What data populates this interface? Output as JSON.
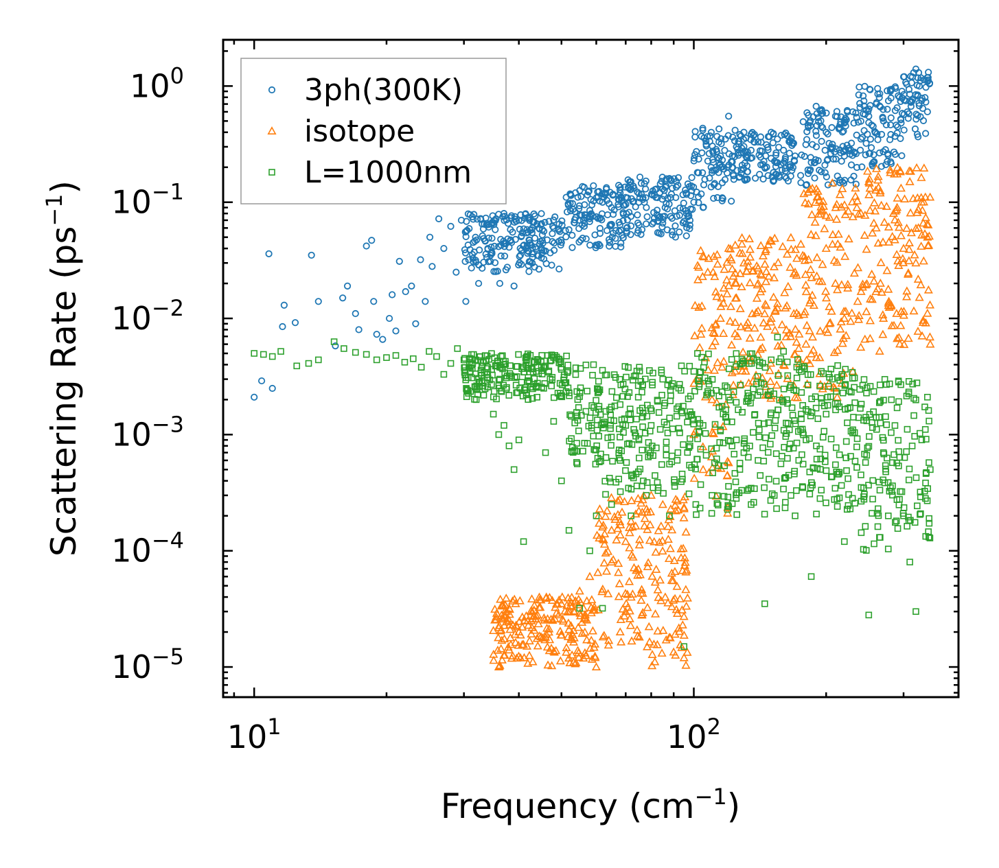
{
  "chart_data": {
    "type": "scatter",
    "title": "",
    "xlabel": "Frequency (cm",
    "xlabel_sup": "−1",
    "xlabel_end": ")",
    "ylabel": "Scattering Rate (ps",
    "ylabel_sup": "−1",
    "ylabel_end": ")",
    "xscale": "log",
    "yscale": "log",
    "xlim": [
      8.5,
      400
    ],
    "ylim": [
      5.5e-06,
      2.5
    ],
    "x_ticks": [
      {
        "base": "10",
        "exp": "1",
        "value": 10
      },
      {
        "base": "10",
        "exp": "2",
        "value": 100
      }
    ],
    "y_ticks": [
      {
        "base": "10",
        "exp": "0",
        "value": 1
      },
      {
        "base": "10",
        "exp": "−1",
        "value": 0.1
      },
      {
        "base": "10",
        "exp": "−2",
        "value": 0.01
      },
      {
        "base": "10",
        "exp": "−3",
        "value": 0.001
      },
      {
        "base": "10",
        "exp": "−4",
        "value": 0.0001
      },
      {
        "base": "10",
        "exp": "−5",
        "value": 1e-05
      }
    ],
    "legend_position": "top-left",
    "series": [
      {
        "name": "3ph(300K)",
        "marker": "circle",
        "color": "#1f77b4",
        "points": [
          [
            10,
            0.0021
          ],
          [
            10.4,
            0.0029
          ],
          [
            10.8,
            0.036
          ],
          [
            11,
            0.0025
          ],
          [
            11.6,
            0.0085
          ],
          [
            11.7,
            0.013
          ],
          [
            12.4,
            0.0092
          ],
          [
            13.5,
            0.035
          ],
          [
            14,
            0.014
          ],
          [
            15.3,
            0.0058
          ],
          [
            15.9,
            0.015
          ],
          [
            16.3,
            0.019
          ],
          [
            17,
            0.011
          ],
          [
            17.3,
            0.008
          ],
          [
            18,
            0.042
          ],
          [
            18.5,
            0.047
          ],
          [
            18.7,
            0.014
          ],
          [
            19,
            0.0073
          ],
          [
            19.6,
            0.0066
          ],
          [
            20.3,
            0.01
          ],
          [
            20.6,
            0.016
          ],
          [
            21,
            0.0078
          ],
          [
            21.4,
            0.031
          ],
          [
            22.1,
            0.017
          ],
          [
            22.8,
            0.019
          ],
          [
            23.3,
            0.009
          ],
          [
            23.9,
            0.032
          ],
          [
            24.5,
            0.014
          ],
          [
            25.1,
            0.05
          ],
          [
            25.4,
            0.028
          ],
          [
            26.3,
            0.072
          ],
          [
            27,
            0.04
          ],
          [
            28,
            0.062
          ],
          [
            28.8,
            0.025
          ],
          [
            29.6,
            0.07
          ],
          [
            30.3,
            0.014
          ],
          [
            31,
            0.078
          ],
          [
            31.5,
            0.045
          ],
          [
            32.4,
            0.02
          ],
          [
            33,
            0.065
          ],
          [
            34.5,
            0.035
          ],
          [
            35.5,
            0.072
          ],
          [
            36.2,
            0.02
          ],
          [
            37,
            0.08
          ],
          [
            38.5,
            0.045
          ],
          [
            39,
            0.019
          ],
          [
            40,
            0.07
          ],
          [
            41.5,
            0.04
          ],
          [
            42,
            0.055
          ],
          [
            44,
            0.065
          ],
          [
            46,
            0.038
          ],
          [
            48,
            0.06
          ],
          [
            50,
            0.045
          ],
          [
            52,
            0.058
          ],
          [
            55,
            0.07
          ],
          [
            58,
            0.085
          ],
          [
            60,
            0.075
          ],
          [
            62,
            0.1
          ],
          [
            65,
            0.09
          ],
          [
            68,
            0.12
          ],
          [
            70,
            0.11
          ],
          [
            72,
            0.13
          ],
          [
            75,
            0.1
          ],
          [
            78,
            0.09
          ],
          [
            82,
            0.11
          ],
          [
            85,
            0.13
          ],
          [
            88,
            0.16
          ],
          [
            92,
            0.14
          ],
          [
            96,
            0.12
          ],
          [
            100,
            0.1
          ],
          [
            105,
            0.09
          ],
          [
            110,
            0.18
          ],
          [
            115,
            0.25
          ],
          [
            118,
            0.35
          ],
          [
            120,
            0.55
          ],
          [
            125,
            0.3
          ],
          [
            130,
            0.4
          ],
          [
            135,
            0.28
          ],
          [
            140,
            0.33
          ],
          [
            145,
            0.2
          ],
          [
            150,
            0.4
          ],
          [
            155,
            0.35
          ],
          [
            160,
            0.28
          ],
          [
            165,
            0.2
          ],
          [
            170,
            0.25
          ],
          [
            175,
            0.17
          ],
          [
            180,
            0.14
          ],
          [
            185,
            0.22
          ],
          [
            190,
            0.3
          ],
          [
            195,
            0.45
          ],
          [
            200,
            0.4
          ],
          [
            210,
            0.55
          ],
          [
            220,
            0.48
          ],
          [
            230,
            0.6
          ],
          [
            240,
            0.35
          ],
          [
            250,
            0.55
          ],
          [
            260,
            0.7
          ],
          [
            270,
            0.5
          ],
          [
            280,
            0.9
          ],
          [
            290,
            0.65
          ],
          [
            300,
            1.2
          ],
          [
            310,
            0.85
          ],
          [
            320,
            1.4
          ],
          [
            330,
            0.75
          ],
          [
            340,
            0.6
          ]
        ],
        "bands": [
          {
            "x": [
              30,
              50
            ],
            "y_low": 0.025,
            "y_high": 0.08
          },
          {
            "x": [
              50,
              70
            ],
            "y_low": 0.04,
            "y_high": 0.14
          },
          {
            "x": [
              70,
              100
            ],
            "y_low": 0.05,
            "y_high": 0.17
          },
          {
            "x": [
              100,
              125
            ],
            "y_low": 0.09,
            "y_high": 0.45
          },
          {
            "x": [
              125,
              170
            ],
            "y_low": 0.15,
            "y_high": 0.4
          },
          {
            "x": [
              175,
              235
            ],
            "y_low": 0.14,
            "y_high": 0.7
          },
          {
            "x": [
              235,
              300
            ],
            "y_low": 0.2,
            "y_high": 1.0
          },
          {
            "x": [
              300,
              345
            ],
            "y_low": 0.35,
            "y_high": 1.4
          }
        ]
      },
      {
        "name": "isotope",
        "marker": "triangle",
        "color": "#ff7f0e",
        "points": [
          [
            36,
            1e-05
          ],
          [
            38,
            1.4e-05
          ],
          [
            40,
            2e-05
          ],
          [
            43,
            2.6e-05
          ],
          [
            46,
            1.8e-05
          ],
          [
            50,
            3.5e-05
          ],
          [
            55,
            4.5e-05
          ],
          [
            58,
            6e-05
          ],
          [
            60,
            1e-05
          ],
          [
            62,
            0.00016
          ],
          [
            65,
            8e-05
          ],
          [
            68,
            2e-05
          ],
          [
            70,
            0.00012
          ],
          [
            72,
            0.00018
          ],
          [
            75,
            0.00022
          ],
          [
            80,
            0.0003
          ],
          [
            85,
            0.00025
          ],
          [
            88,
            1.8e-05
          ],
          [
            95,
            1.2e-05
          ],
          [
            100,
            0.001
          ],
          [
            105,
            0.0005
          ],
          [
            110,
            0.002
          ],
          [
            115,
            0.01
          ],
          [
            120,
            0.04
          ],
          [
            125,
            0.015
          ],
          [
            130,
            0.03
          ],
          [
            140,
            0.02
          ],
          [
            150,
            0.01
          ],
          [
            160,
            0.004
          ],
          [
            170,
            0.025
          ],
          [
            180,
            0.006
          ],
          [
            190,
            0.13
          ],
          [
            200,
            0.04
          ],
          [
            210,
            0.02
          ],
          [
            220,
            0.01
          ],
          [
            230,
            0.0035
          ],
          [
            240,
            0.08
          ],
          [
            250,
            0.15
          ],
          [
            260,
            0.06
          ],
          [
            270,
            0.01
          ],
          [
            280,
            0.18
          ],
          [
            290,
            0.09
          ],
          [
            300,
            0.04
          ],
          [
            310,
            0.15
          ],
          [
            320,
            0.03
          ],
          [
            330,
            0.1
          ],
          [
            340,
            0.05
          ],
          [
            345,
            0.006
          ]
        ],
        "bands": [
          {
            "x": [
              35,
              60
            ],
            "y_low": 1e-05,
            "y_high": 4e-05
          },
          {
            "x": [
              60,
              97
            ],
            "y_low": 1e-05,
            "y_high": 0.0003
          },
          {
            "x": [
              100,
              120
            ],
            "y_low": 0.0002,
            "y_high": 0.04
          },
          {
            "x": [
              120,
              175
            ],
            "y_low": 0.002,
            "y_high": 0.05
          },
          {
            "x": [
              175,
              240
            ],
            "y_low": 0.002,
            "y_high": 0.15
          },
          {
            "x": [
              240,
              345
            ],
            "y_low": 0.005,
            "y_high": 0.2
          }
        ]
      },
      {
        "name": "L=1000nm",
        "marker": "square",
        "color": "#2ca02c",
        "points": [
          [
            10,
            0.005
          ],
          [
            10.5,
            0.0049
          ],
          [
            11,
            0.0047
          ],
          [
            11.5,
            0.0052
          ],
          [
            12.5,
            0.0039
          ],
          [
            13.3,
            0.0041
          ],
          [
            14,
            0.0044
          ],
          [
            15.2,
            0.0063
          ],
          [
            16,
            0.0055
          ],
          [
            17,
            0.0051
          ],
          [
            18,
            0.0049
          ],
          [
            19,
            0.0044
          ],
          [
            20,
            0.0046
          ],
          [
            21,
            0.0048
          ],
          [
            22,
            0.0042
          ],
          [
            23,
            0.0045
          ],
          [
            24,
            0.0038
          ],
          [
            25,
            0.0052
          ],
          [
            26,
            0.0047
          ],
          [
            27,
            0.0033
          ],
          [
            28,
            0.0041
          ],
          [
            29,
            0.0055
          ],
          [
            30,
            0.0044
          ],
          [
            31,
            0.0035
          ],
          [
            32,
            0.002
          ],
          [
            33,
            0.0028
          ],
          [
            34,
            0.0037
          ],
          [
            35,
            0.0015
          ],
          [
            36,
            0.001
          ],
          [
            37,
            0.0012
          ],
          [
            38,
            0.0008
          ],
          [
            39,
            0.0005
          ],
          [
            40,
            0.0009
          ],
          [
            41,
            0.00012
          ],
          [
            42,
            0.0031
          ],
          [
            44,
            0.0021
          ],
          [
            46,
            0.0007
          ],
          [
            48,
            0.0013
          ],
          [
            50,
            0.0004
          ],
          [
            52,
            0.00015
          ],
          [
            55,
            3.2e-05
          ],
          [
            58,
            0.0001
          ],
          [
            60,
            0.0002
          ],
          [
            62,
            3.2e-05
          ],
          [
            65,
            0.00025
          ],
          [
            68,
            0.0006
          ],
          [
            70,
            0.0012
          ],
          [
            72,
            0.0002
          ],
          [
            75,
            0.0009
          ],
          [
            78,
            0.0003
          ],
          [
            80,
            0.0012
          ],
          [
            85,
            0.003
          ],
          [
            88,
            0.0002
          ],
          [
            92,
            0.0007
          ],
          [
            95,
            1.5e-05
          ],
          [
            98,
            0.0008
          ],
          [
            100,
            0.0035
          ],
          [
            105,
            0.0012
          ],
          [
            110,
            0.0003
          ],
          [
            115,
            0.0011
          ],
          [
            120,
            0.0021
          ],
          [
            125,
            0.0009
          ],
          [
            130,
            0.0007
          ],
          [
            135,
            0.00025
          ],
          [
            140,
            0.0006
          ],
          [
            145,
            3.5e-05
          ],
          [
            150,
            0.0044
          ],
          [
            155,
            0.0069
          ],
          [
            160,
            0.0052
          ],
          [
            165,
            0.0011
          ],
          [
            170,
            0.0002
          ],
          [
            175,
            0.0011
          ],
          [
            180,
            0.0009
          ],
          [
            185,
            6e-05
          ],
          [
            190,
            0.0008
          ],
          [
            195,
            0.0035
          ],
          [
            200,
            0.0015
          ],
          [
            210,
            0.00055
          ],
          [
            220,
            0.00012
          ],
          [
            230,
            0.0011
          ],
          [
            240,
            0.00045
          ],
          [
            250,
            2.8e-05
          ],
          [
            260,
            0.0014
          ],
          [
            270,
            0.0007
          ],
          [
            280,
            0.00035
          ],
          [
            290,
            0.0017
          ],
          [
            300,
            0.0002
          ],
          [
            310,
            8e-05
          ],
          [
            320,
            3e-05
          ],
          [
            330,
            0.0009
          ],
          [
            340,
            0.0021
          ],
          [
            345,
            0.0005
          ]
        ],
        "bands": [
          {
            "x": [
              30,
              52
            ],
            "y_low": 0.002,
            "y_high": 0.005
          },
          {
            "x": [
              52,
              62
            ],
            "y_low": 0.0005,
            "y_high": 0.004
          },
          {
            "x": [
              62,
              100
            ],
            "y_low": 0.0003,
            "y_high": 0.004
          },
          {
            "x": [
              100,
              175
            ],
            "y_low": 0.0002,
            "y_high": 0.005
          },
          {
            "x": [
              175,
              240
            ],
            "y_low": 0.0002,
            "y_high": 0.004
          },
          {
            "x": [
              240,
              345
            ],
            "y_low": 0.0001,
            "y_high": 0.003
          }
        ]
      }
    ]
  }
}
